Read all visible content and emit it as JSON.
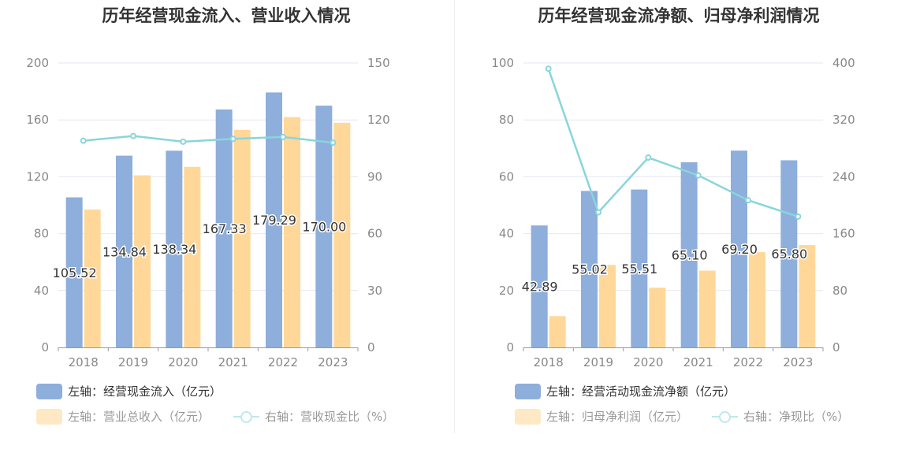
{
  "charts": [
    {
      "title": "历年经营现金流入、营业收入情况",
      "chart_data": {
        "type": "bar",
        "categories": [
          "2018",
          "2019",
          "2020",
          "2021",
          "2022",
          "2023"
        ],
        "series": [
          {
            "name": "左轴：经营现金流入（亿元）",
            "axis": "left",
            "type": "bar",
            "color": "#8eaedb",
            "values": [
              105.52,
              134.84,
              138.34,
              167.33,
              179.29,
              170.0
            ],
            "labels": [
              "105.52",
              "134.84",
              "138.34",
              "167.33",
              "179.29",
              "170.00"
            ]
          },
          {
            "name": "左轴：营业总收入（亿元）",
            "axis": "left",
            "type": "bar",
            "color": "#ffd899",
            "values": [
              97,
              121,
              127,
              153,
              162,
              158
            ]
          },
          {
            "name": "右轴：营收现金比（%）",
            "axis": "right",
            "type": "line",
            "color": "#89d5dc",
            "values": [
              109,
              111.5,
              108.5,
              110,
              111,
              108
            ]
          }
        ],
        "y_left": {
          "min": 0,
          "max": 200,
          "ticks": [
            "0",
            "40",
            "80",
            "120",
            "160",
            "200"
          ]
        },
        "y_right": {
          "min": 0,
          "max": 150,
          "ticks": [
            "0",
            "30",
            "60",
            "90",
            "120",
            "150"
          ]
        },
        "grid": true,
        "legend_position": "bottom-left"
      }
    },
    {
      "title": "历年经营现金流净额、归母净利润情况",
      "chart_data": {
        "type": "bar",
        "categories": [
          "2018",
          "2019",
          "2020",
          "2021",
          "2022",
          "2023"
        ],
        "series": [
          {
            "name": "左轴：经营活动现金流净额（亿元）",
            "axis": "left",
            "type": "bar",
            "color": "#8eaedb",
            "values": [
              42.89,
              55.02,
              55.51,
              65.1,
              69.2,
              65.8
            ],
            "labels": [
              "42.89",
              "55.02",
              "55.51",
              "65.10",
              "69.20",
              "65.80"
            ]
          },
          {
            "name": "左轴：归母净利润（亿元）",
            "axis": "left",
            "type": "bar",
            "color": "#ffd899",
            "values": [
              11,
              29,
              21,
              27,
              33.5,
              36
            ]
          },
          {
            "name": "右轴：净现比（%）",
            "axis": "right",
            "type": "line",
            "color": "#89d5dc",
            "values": [
              392,
              190,
              267,
              242,
              207,
              184
            ]
          }
        ],
        "y_left": {
          "min": 0,
          "max": 100,
          "ticks": [
            "0",
            "20",
            "40",
            "60",
            "80",
            "100"
          ]
        },
        "y_right": {
          "min": 0,
          "max": 400,
          "ticks": [
            "0",
            "80",
            "160",
            "240",
            "320",
            "400"
          ]
        },
        "grid": true,
        "legend_position": "bottom-left"
      }
    }
  ]
}
